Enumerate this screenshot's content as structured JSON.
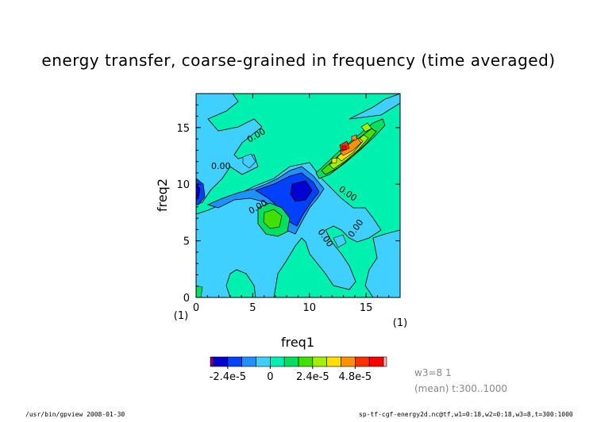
{
  "chart_data": {
    "type": "heatmap",
    "title": "energy transfer, coarse-grained in frequency (time averaged)",
    "xlabel": "freq1",
    "ylabel": "freq2",
    "x_unit": "(1)",
    "y_unit": "(1)",
    "xlim": [
      0,
      18
    ],
    "ylim": [
      0,
      18
    ],
    "x_ticks": [
      "0",
      "5",
      "10",
      "15"
    ],
    "y_ticks": [
      "0",
      "5",
      "10",
      "15"
    ],
    "contour_labels": [
      "0.00",
      "0.00",
      "0.00",
      "0.00",
      "0.00",
      "0.00",
      "0.00",
      "0.00"
    ],
    "colorbar": {
      "tick_labels": [
        "-2.4e-5",
        "0",
        "2.4e-5",
        "4.8e-5"
      ],
      "colors": [
        "#7a0080",
        "#0000d0",
        "#0040ff",
        "#2090ff",
        "#40d0ff",
        "#00f0b0",
        "#00e060",
        "#40e000",
        "#a0f000",
        "#ffe000",
        "#ff9000",
        "#ff3000",
        "#ff0000",
        "#ffb0b0"
      ]
    },
    "cells_note": "",
    "grid": false
  },
  "meta_lines": [
    "w3=8  1",
    "(mean)  t:300..1000"
  ],
  "footer_left": "/usr/bin/gpview   2008-01-30",
  "footer_right": "sp-tf-cgf-energy2d.nc@tf,w1=0:18,w2=0:18,w3=8,t=300:1000"
}
